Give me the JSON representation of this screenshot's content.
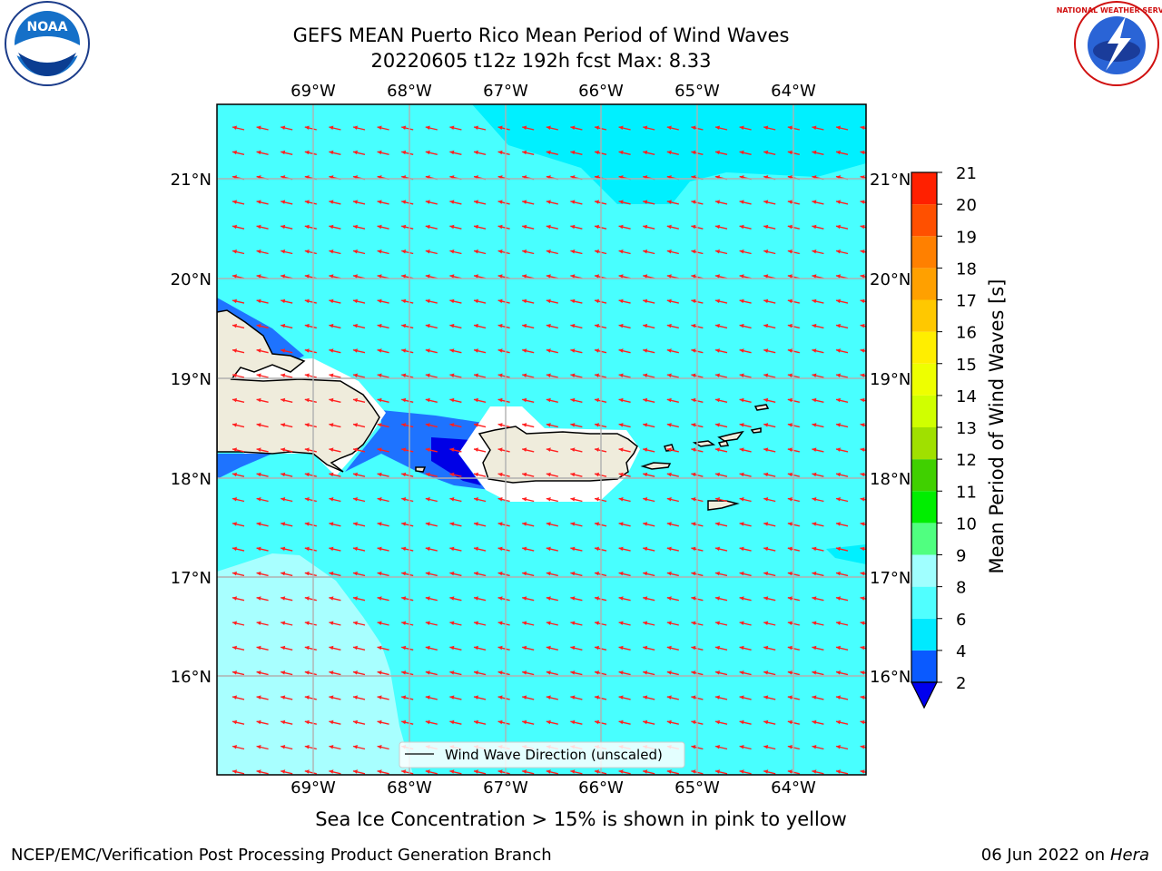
{
  "header": {
    "title_line1": "GEFS MEAN Puerto Rico Mean Period of Wind Waves",
    "title_line2": "20220605 t12z 192h fcst   Max: 8.33"
  },
  "logos": {
    "left": "NOAA",
    "right": "NATIONAL WEATHER SERVICE"
  },
  "map": {
    "lon_labels": [
      "69°W",
      "68°W",
      "67°W",
      "66°W",
      "65°W",
      "64°W"
    ],
    "lat_labels": [
      "21°N",
      "20°N",
      "19°N",
      "18°N",
      "17°N",
      "16°N"
    ],
    "legend_label": "Wind Wave Direction (unscaled)"
  },
  "colorbar": {
    "label": "Mean Period of Wind Waves [s]",
    "ticks": [
      "2",
      "4",
      "6",
      "8",
      "9",
      "10",
      "11",
      "12",
      "13",
      "14",
      "15",
      "16",
      "17",
      "18",
      "19",
      "20",
      "21"
    ],
    "colors": [
      "#0a5aff",
      "#00eaff",
      "#50ffff",
      "#a0ffff",
      "#50ff80",
      "#00ee00",
      "#40d000",
      "#a0e000",
      "#d0ff00",
      "#eeff00",
      "#ffee00",
      "#ffc800",
      "#ffa000",
      "#ff8000",
      "#ff5000",
      "#ff2000",
      "#ff0000"
    ],
    "under_color": "#0000ee"
  },
  "field_colors": {
    "period_2_4": "#1e73ff",
    "period_below_2": "#0000e6",
    "period_4_6": "#00f0ff",
    "period_6_8": "#48ffff",
    "period_8_9": "#a8ffff",
    "land": "#efecdc",
    "arrow": "#ff2020"
  },
  "note": "Sea Ice Concentration > 15% is shown in pink to yellow",
  "footer": {
    "left": "NCEP/EMC/Verification Post Processing Product Generation Branch",
    "right_date": "06 Jun 2022 on",
    "right_host": "Hera"
  }
}
